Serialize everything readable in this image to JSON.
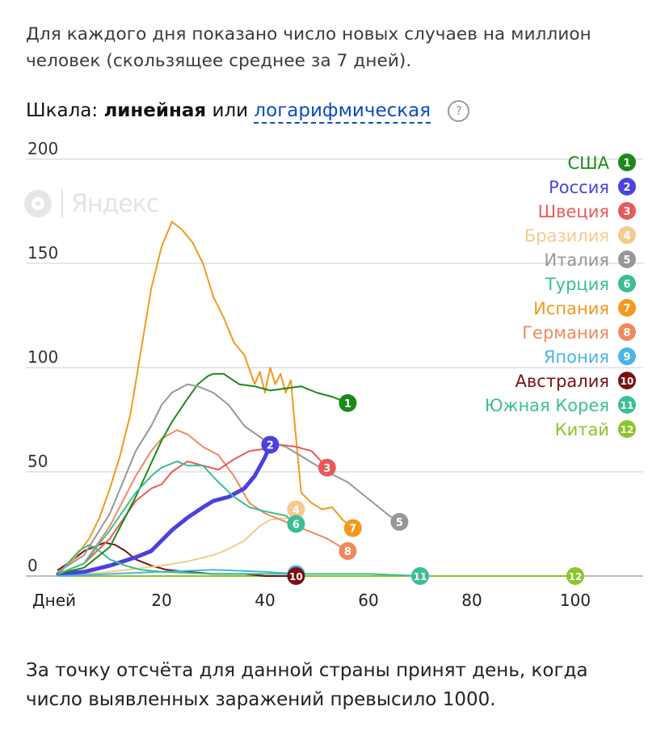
{
  "intro": "Для каждого дня показано число новых случаев на миллион человек (скользящее среднее за 7 дней).",
  "scale": {
    "label": "Шкала:",
    "linear": "линейная",
    "or": "или",
    "log": "логарифмическая",
    "help": "?"
  },
  "watermark": "Яндекс",
  "footer": "За точку отсчёта для данной страны принят день, когда число выявленных заражений превысило 1000.",
  "chart_data": {
    "type": "line",
    "xlabel": "Дней",
    "ylabel": "",
    "xlim": [
      0,
      110
    ],
    "ylim": [
      0,
      200
    ],
    "x_ticks": [
      20,
      40,
      60,
      80,
      100
    ],
    "y_ticks": [
      0,
      50,
      100,
      150,
      200
    ],
    "grid": "horizontal",
    "legend_placement": "top-right",
    "series": [
      {
        "name": "США",
        "num": "1",
        "color": "#1a8a1a",
        "width": 2,
        "points": [
          [
            0,
            1
          ],
          [
            5,
            4
          ],
          [
            10,
            14
          ],
          [
            15,
            38
          ],
          [
            20,
            65
          ],
          [
            22,
            74
          ],
          [
            25,
            85
          ],
          [
            27,
            92
          ],
          [
            29,
            96
          ],
          [
            30,
            97
          ],
          [
            32,
            97
          ],
          [
            35,
            92
          ],
          [
            38,
            91
          ],
          [
            41,
            89
          ],
          [
            44,
            90
          ],
          [
            47,
            91
          ],
          [
            50,
            88
          ],
          [
            53,
            86
          ],
          [
            56,
            83
          ]
        ]
      },
      {
        "name": "Россия",
        "num": "2",
        "color": "#4b41e0",
        "width": 5,
        "points": [
          [
            0,
            1
          ],
          [
            5,
            2
          ],
          [
            10,
            5
          ],
          [
            15,
            9
          ],
          [
            18,
            12
          ],
          [
            20,
            17
          ],
          [
            22,
            22
          ],
          [
            25,
            28
          ],
          [
            28,
            33
          ],
          [
            30,
            36
          ],
          [
            33,
            38
          ],
          [
            36,
            42
          ],
          [
            38,
            48
          ],
          [
            40,
            57
          ],
          [
            41,
            63
          ]
        ]
      },
      {
        "name": "Швеция",
        "num": "3",
        "color": "#e85a5a",
        "width": 2,
        "points": [
          [
            0,
            1
          ],
          [
            5,
            6
          ],
          [
            10,
            18
          ],
          [
            15,
            36
          ],
          [
            18,
            42
          ],
          [
            20,
            44
          ],
          [
            22,
            50
          ],
          [
            25,
            55
          ],
          [
            28,
            53
          ],
          [
            31,
            51
          ],
          [
            34,
            56
          ],
          [
            37,
            60
          ],
          [
            40,
            61
          ],
          [
            43,
            63
          ],
          [
            46,
            62
          ],
          [
            49,
            60
          ],
          [
            52,
            52
          ]
        ]
      },
      {
        "name": "Бразилия",
        "num": "4",
        "color": "#f6c98e",
        "width": 2,
        "points": [
          [
            0,
            0
          ],
          [
            10,
            2
          ],
          [
            20,
            5
          ],
          [
            25,
            7
          ],
          [
            30,
            10
          ],
          [
            33,
            13
          ],
          [
            36,
            17
          ],
          [
            39,
            24
          ],
          [
            41,
            27
          ],
          [
            45,
            28
          ],
          [
            46,
            32
          ]
        ]
      },
      {
        "name": "Италия",
        "num": "5",
        "color": "#979797",
        "width": 2,
        "points": [
          [
            0,
            2
          ],
          [
            5,
            10
          ],
          [
            10,
            30
          ],
          [
            15,
            60
          ],
          [
            18,
            72
          ],
          [
            20,
            82
          ],
          [
            22,
            88
          ],
          [
            25,
            92
          ],
          [
            27,
            91
          ],
          [
            30,
            88
          ],
          [
            33,
            82
          ],
          [
            36,
            72
          ],
          [
            40,
            65
          ],
          [
            44,
            62
          ],
          [
            48,
            56
          ],
          [
            52,
            50
          ],
          [
            56,
            45
          ],
          [
            60,
            37
          ],
          [
            64,
            29
          ],
          [
            66,
            26
          ]
        ]
      },
      {
        "name": "Турция",
        "num": "6",
        "color": "#3bbf92",
        "width": 2,
        "points": [
          [
            0,
            1
          ],
          [
            5,
            6
          ],
          [
            10,
            22
          ],
          [
            15,
            40
          ],
          [
            18,
            48
          ],
          [
            20,
            52
          ],
          [
            23,
            55
          ],
          [
            25,
            53
          ],
          [
            28,
            53
          ],
          [
            31,
            45
          ],
          [
            34,
            38
          ],
          [
            37,
            33
          ],
          [
            40,
            31
          ],
          [
            44,
            29
          ],
          [
            46,
            25
          ]
        ]
      },
      {
        "name": "Испания",
        "num": "7",
        "color": "#f29a1d",
        "width": 2,
        "points": [
          [
            0,
            1
          ],
          [
            3,
            8
          ],
          [
            6,
            18
          ],
          [
            8,
            28
          ],
          [
            10,
            42
          ],
          [
            12,
            58
          ],
          [
            14,
            78
          ],
          [
            16,
            108
          ],
          [
            18,
            138
          ],
          [
            20,
            158
          ],
          [
            22,
            170
          ],
          [
            24,
            166
          ],
          [
            26,
            160
          ],
          [
            28,
            150
          ],
          [
            30,
            134
          ],
          [
            32,
            124
          ],
          [
            34,
            112
          ],
          [
            36,
            106
          ],
          [
            38,
            92
          ],
          [
            39,
            98
          ],
          [
            40,
            88
          ],
          [
            41,
            100
          ],
          [
            42,
            92
          ],
          [
            43,
            97
          ],
          [
            44,
            88
          ],
          [
            45,
            94
          ],
          [
            46,
            66
          ],
          [
            47,
            40
          ],
          [
            49,
            35
          ],
          [
            51,
            32
          ],
          [
            53,
            33
          ],
          [
            55,
            27
          ],
          [
            57,
            23
          ]
        ]
      },
      {
        "name": "Германия",
        "num": "8",
        "color": "#ef8a5e",
        "width": 2,
        "points": [
          [
            0,
            1
          ],
          [
            5,
            6
          ],
          [
            10,
            24
          ],
          [
            15,
            48
          ],
          [
            18,
            60
          ],
          [
            20,
            66
          ],
          [
            23,
            70
          ],
          [
            25,
            68
          ],
          [
            28,
            62
          ],
          [
            31,
            58
          ],
          [
            34,
            48
          ],
          [
            37,
            35
          ],
          [
            40,
            30
          ],
          [
            44,
            26
          ],
          [
            48,
            22
          ],
          [
            52,
            18
          ],
          [
            56,
            12
          ]
        ]
      },
      {
        "name": "Япония",
        "num": "9",
        "color": "#4bb4e6",
        "width": 2,
        "points": [
          [
            0,
            0
          ],
          [
            10,
            1
          ],
          [
            20,
            2
          ],
          [
            30,
            3
          ],
          [
            40,
            2
          ],
          [
            46,
            1
          ]
        ]
      },
      {
        "name": "Австралия",
        "num": "10",
        "color": "#7a1111",
        "width": 2,
        "points": [
          [
            0,
            3
          ],
          [
            3,
            8
          ],
          [
            5,
            12
          ],
          [
            7,
            14
          ],
          [
            9,
            16
          ],
          [
            11,
            15
          ],
          [
            13,
            12
          ],
          [
            15,
            8
          ],
          [
            18,
            5
          ],
          [
            21,
            3
          ],
          [
            25,
            2
          ],
          [
            30,
            1
          ],
          [
            36,
            1
          ],
          [
            40,
            0
          ],
          [
            46,
            0
          ]
        ]
      },
      {
        "name": "Южная Корея",
        "num": "11",
        "color": "#3bbf92",
        "width": 2,
        "points": [
          [
            0,
            1
          ],
          [
            4,
            12
          ],
          [
            6,
            15
          ],
          [
            8,
            12
          ],
          [
            10,
            8
          ],
          [
            13,
            5
          ],
          [
            16,
            3
          ],
          [
            20,
            2
          ],
          [
            30,
            1
          ],
          [
            45,
            1
          ],
          [
            60,
            1
          ],
          [
            70,
            0
          ]
        ]
      },
      {
        "name": "Китай",
        "num": "12",
        "color": "#8ac629",
        "width": 2,
        "points": [
          [
            0,
            0
          ],
          [
            20,
            0
          ],
          [
            50,
            0
          ],
          [
            80,
            0
          ],
          [
            100,
            0
          ]
        ]
      }
    ]
  }
}
